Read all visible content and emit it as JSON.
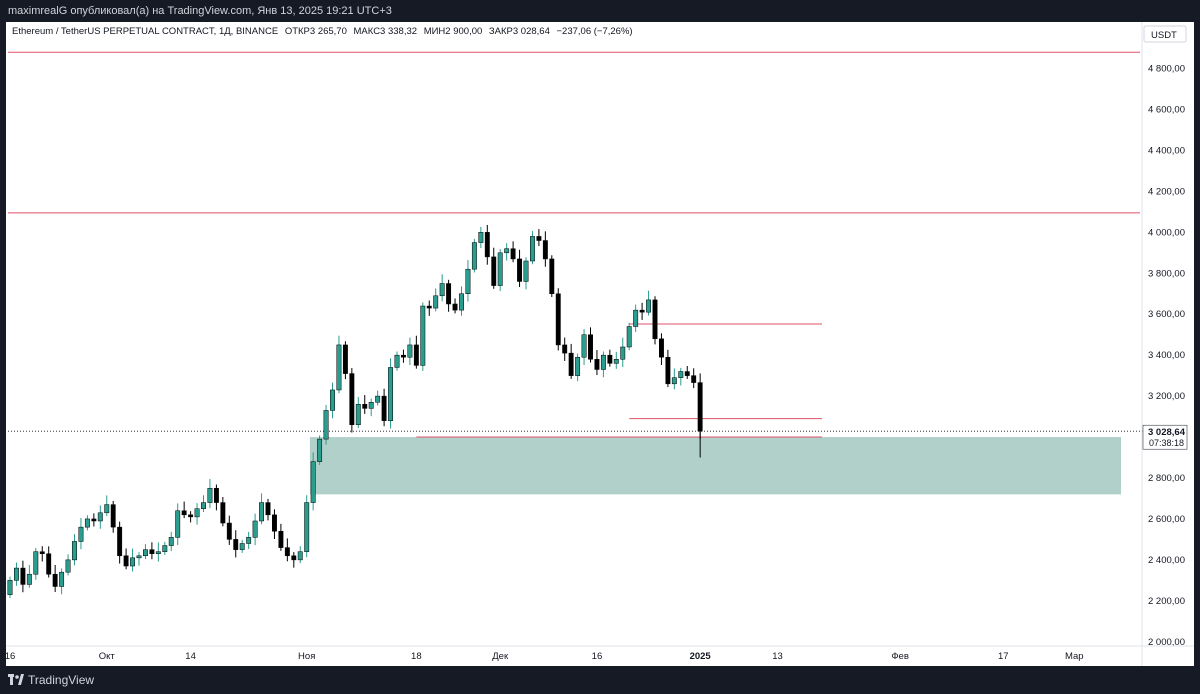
{
  "publisher_line": "maximrealG опубликовал(а) на TradingView.com, Янв 13, 2025 19:21 UTC+3",
  "footer_brand": "TradingView",
  "header": {
    "symbol": "Ethereum / TetherUS PERPETUAL CONTRACT, 1Д, BINANCE",
    "open": "ОТКР3 265,70",
    "high": "МАКС3 338,32",
    "low": "МИН2 900,00",
    "close": "ЗАКР3 028,64",
    "change": "−237,06 (−7,26%)"
  },
  "currency": "USDT",
  "price_label": "3 028,64",
  "countdown": "07:38:18",
  "colors": {
    "up": "#2a9d8f",
    "down": "#000000",
    "zone": "#9fc4bd",
    "level": "#e0526a"
  },
  "chart_data": {
    "type": "candlestick",
    "y_ticks": [
      "4 800,00",
      "4 600,00",
      "4 400,00",
      "4 200,00",
      "4 000,00",
      "3 800,00",
      "3 600,00",
      "3 400,00",
      "3 200,00",
      "3 000,00",
      "2 800,00",
      "2 600,00",
      "2 400,00",
      "2 200,00",
      "2 000,00"
    ],
    "y_tick_values": [
      4800,
      4600,
      4400,
      4200,
      4000,
      3800,
      3600,
      3400,
      3200,
      3000,
      2800,
      2600,
      2400,
      2200,
      2000
    ],
    "ylim": [
      1950,
      4920
    ],
    "x_ticks": [
      {
        "label": "16",
        "day": 0
      },
      {
        "label": "Окт",
        "day": 15
      },
      {
        "label": "14",
        "day": 28
      },
      {
        "label": "Ноя",
        "day": 46
      },
      {
        "label": "18",
        "day": 63
      },
      {
        "label": "Дек",
        "day": 76
      },
      {
        "label": "16",
        "day": 91
      },
      {
        "label": "2025",
        "day": 107
      },
      {
        "label": "13",
        "day": 119
      },
      {
        "label": "Фев",
        "day": 138
      },
      {
        "label": "17",
        "day": 154
      },
      {
        "label": "Мар",
        "day": 165
      }
    ],
    "closes": [
      2300,
      2360,
      2280,
      2330,
      2440,
      2430,
      2330,
      2270,
      2340,
      2400,
      2490,
      2560,
      2600,
      2590,
      2630,
      2670,
      2560,
      2420,
      2370,
      2410,
      2420,
      2450,
      2430,
      2440,
      2470,
      2510,
      2640,
      2620,
      2610,
      2650,
      2680,
      2750,
      2680,
      2580,
      2500,
      2450,
      2480,
      2510,
      2590,
      2680,
      2620,
      2540,
      2460,
      2420,
      2400,
      2440,
      2680,
      2880,
      2990,
      3130,
      3230,
      3450,
      3310,
      3060,
      3160,
      3140,
      3170,
      3200,
      3080,
      3340,
      3400,
      3390,
      3450,
      3350,
      3640,
      3630,
      3690,
      3750,
      3650,
      3620,
      3700,
      3820,
      3950,
      4000,
      3880,
      3740,
      3900,
      3920,
      3870,
      3760,
      3860,
      3980,
      3960,
      3870,
      3700,
      3450,
      3410,
      3300,
      3390,
      3500,
      3380,
      3330,
      3400,
      3360,
      3380,
      3440,
      3540,
      3620,
      3610,
      3670,
      3480,
      3390,
      3260,
      3290,
      3320,
      3300,
      3266,
      3028.64
    ],
    "opens_first": 2230,
    "price_levels": [
      {
        "value": 4880,
        "extent": "full"
      },
      {
        "value": 4095,
        "extent": "full"
      },
      {
        "value": 3552,
        "extent": "partial"
      },
      {
        "value": 3090,
        "extent": "partial"
      },
      {
        "value": 3000,
        "extent": "partial"
      }
    ],
    "zone": {
      "top": 3000,
      "bottom": 2720
    },
    "last_price": 3028.64
  }
}
